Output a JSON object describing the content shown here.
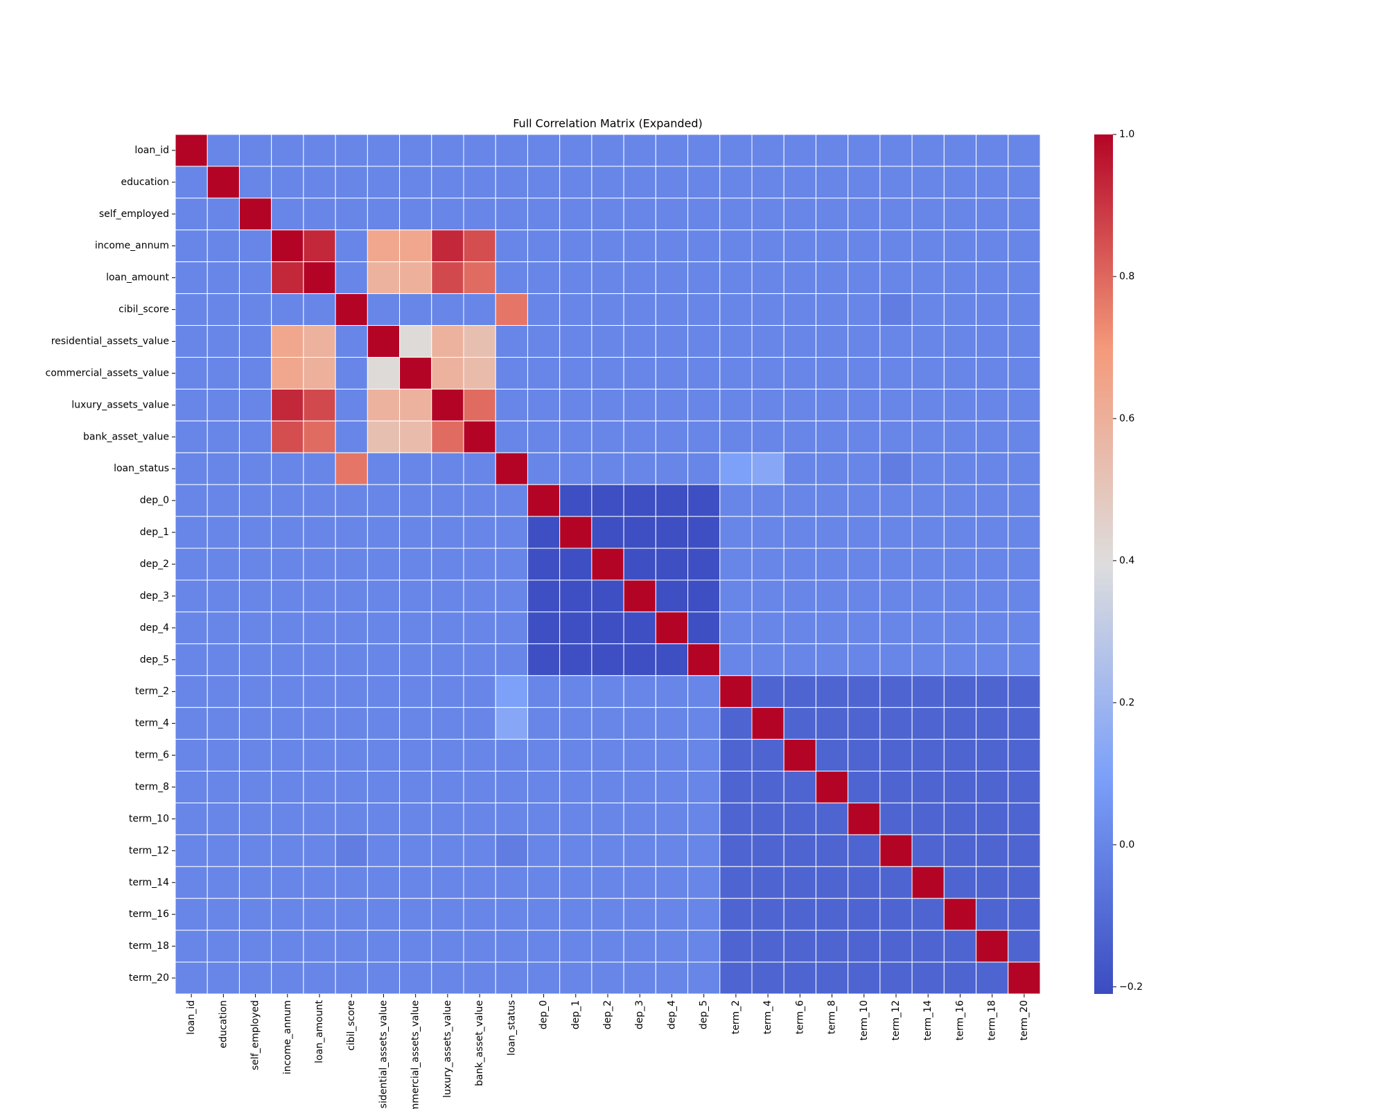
{
  "chart_data": {
    "type": "heatmap",
    "title": "Full Correlation Matrix (Expanded)",
    "categories": [
      "loan_id",
      "education",
      "self_employed",
      "income_annum",
      "loan_amount",
      "cibil_score",
      "residential_assets_value",
      "commercial_assets_value",
      "luxury_assets_value",
      "bank_asset_value",
      "loan_status",
      "dep_0",
      "dep_1",
      "dep_2",
      "dep_3",
      "dep_4",
      "dep_5",
      "term_2",
      "term_4",
      "term_6",
      "term_8",
      "term_10",
      "term_12",
      "term_14",
      "term_16",
      "term_18",
      "term_20"
    ],
    "matrix": [
      [
        1,
        0,
        0,
        0,
        0,
        0,
        0,
        0,
        0,
        0,
        0,
        0,
        0,
        0,
        0,
        0,
        0,
        0,
        0,
        0,
        0,
        0,
        0,
        0,
        0,
        0,
        0
      ],
      [
        0,
        1,
        0,
        0,
        0,
        0,
        0,
        0,
        0,
        0,
        0,
        0,
        0,
        0,
        0,
        0,
        0,
        0,
        0,
        0,
        0,
        0,
        0,
        0,
        0,
        0,
        0
      ],
      [
        0,
        0,
        1,
        0,
        0,
        0,
        0,
        0,
        0,
        0,
        0,
        0,
        0,
        0,
        0,
        0,
        0,
        0,
        0,
        0,
        0,
        0,
        0,
        0,
        0,
        0,
        0
      ],
      [
        0,
        0,
        0,
        1,
        0.93,
        0,
        0.64,
        0.64,
        0.93,
        0.85,
        0,
        0,
        0,
        0,
        0,
        0,
        0,
        0,
        0,
        0,
        0,
        0,
        0,
        0,
        0,
        0,
        0
      ],
      [
        0,
        0,
        0,
        0.93,
        1,
        0,
        0.59,
        0.6,
        0.86,
        0.79,
        0,
        0,
        0,
        0,
        0,
        0,
        0,
        0,
        0,
        0,
        0,
        0,
        0,
        0,
        0,
        0,
        0
      ],
      [
        0,
        0,
        0,
        0,
        0,
        1,
        0,
        0,
        0,
        0,
        0.77,
        0,
        0,
        0,
        0,
        0,
        0,
        0,
        0,
        0,
        0,
        0,
        -0.03,
        0,
        0,
        0,
        0
      ],
      [
        0,
        0,
        0,
        0.64,
        0.59,
        0,
        1,
        0.41,
        0.59,
        0.53,
        0,
        0,
        0,
        0,
        0,
        0,
        0,
        0,
        0,
        0,
        0,
        0,
        0,
        0,
        0,
        0,
        0
      ],
      [
        0,
        0,
        0,
        0.64,
        0.6,
        0,
        0.41,
        1,
        0.59,
        0.55,
        0,
        0,
        0,
        0,
        0,
        0,
        0,
        0,
        0,
        0,
        0,
        0,
        0,
        0,
        0,
        0,
        0
      ],
      [
        0,
        0,
        0,
        0.93,
        0.86,
        0,
        0.59,
        0.59,
        1,
        0.79,
        0,
        0,
        0,
        0,
        0,
        0,
        0,
        0,
        0,
        0,
        0,
        0,
        0,
        0,
        0,
        0,
        0
      ],
      [
        0,
        0,
        0,
        0.85,
        0.79,
        0,
        0.53,
        0.55,
        0.79,
        1,
        0,
        0,
        0,
        0,
        0,
        0,
        0,
        0,
        0,
        0,
        0,
        0,
        0,
        0,
        0,
        0,
        0
      ],
      [
        0,
        0,
        0,
        0,
        0,
        0.77,
        0,
        0,
        0,
        0,
        1,
        0,
        0,
        0,
        0,
        0,
        0,
        0.1,
        0.13,
        0,
        0,
        0,
        -0.03,
        0,
        0,
        0,
        0
      ],
      [
        0,
        0,
        0,
        0,
        0,
        0,
        0,
        0,
        0,
        0,
        0,
        1,
        -0.2,
        -0.2,
        -0.2,
        -0.2,
        -0.2,
        0,
        0,
        0,
        0,
        0,
        0,
        0,
        0,
        0,
        0
      ],
      [
        0,
        0,
        0,
        0,
        0,
        0,
        0,
        0,
        0,
        0,
        0,
        -0.2,
        1,
        -0.2,
        -0.2,
        -0.2,
        -0.2,
        0,
        0,
        0,
        0,
        0,
        0,
        0,
        0,
        0,
        0
      ],
      [
        0,
        0,
        0,
        0,
        0,
        0,
        0,
        0,
        0,
        0,
        0,
        -0.2,
        -0.2,
        1,
        -0.2,
        -0.2,
        -0.2,
        0,
        0,
        0,
        0,
        0,
        0,
        0,
        0,
        0,
        0
      ],
      [
        0,
        0,
        0,
        0,
        0,
        0,
        0,
        0,
        0,
        0,
        0,
        -0.2,
        -0.2,
        -0.2,
        1,
        -0.2,
        -0.2,
        0,
        0,
        0,
        0,
        0,
        0,
        0,
        0,
        0,
        0
      ],
      [
        0,
        0,
        0,
        0,
        0,
        0,
        0,
        0,
        0,
        0,
        0,
        -0.2,
        -0.2,
        -0.2,
        -0.2,
        1,
        -0.2,
        0,
        0,
        0,
        0,
        0,
        0,
        0,
        0,
        0,
        0
      ],
      [
        0,
        0,
        0,
        0,
        0,
        0,
        0,
        0,
        0,
        0,
        0,
        -0.2,
        -0.2,
        -0.2,
        -0.2,
        -0.2,
        1,
        0,
        0,
        0,
        0,
        0,
        0,
        0,
        0,
        0,
        0
      ],
      [
        0,
        0,
        0,
        0,
        0,
        0,
        0,
        0,
        0,
        0,
        0.1,
        0,
        0,
        0,
        0,
        0,
        0,
        1,
        -0.12,
        -0.12,
        -0.12,
        -0.12,
        -0.12,
        -0.12,
        -0.12,
        -0.12,
        -0.12
      ],
      [
        0,
        0,
        0,
        0,
        0,
        0,
        0,
        0,
        0,
        0,
        0.13,
        0,
        0,
        0,
        0,
        0,
        0,
        -0.12,
        1,
        -0.12,
        -0.12,
        -0.12,
        -0.12,
        -0.12,
        -0.12,
        -0.12,
        -0.12
      ],
      [
        0,
        0,
        0,
        0,
        0,
        0,
        0,
        0,
        0,
        0,
        0,
        0,
        0,
        0,
        0,
        0,
        0,
        -0.12,
        -0.12,
        1,
        -0.12,
        -0.12,
        -0.12,
        -0.12,
        -0.12,
        -0.12,
        -0.12
      ],
      [
        0,
        0,
        0,
        0,
        0,
        0,
        0,
        0,
        0,
        0,
        0,
        0,
        0,
        0,
        0,
        0,
        0,
        -0.12,
        -0.12,
        -0.12,
        1,
        -0.12,
        -0.12,
        -0.12,
        -0.12,
        -0.12,
        -0.12
      ],
      [
        0,
        0,
        0,
        0,
        0,
        0,
        0,
        0,
        0,
        0,
        0,
        0,
        0,
        0,
        0,
        0,
        0,
        -0.12,
        -0.12,
        -0.12,
        -0.12,
        1,
        -0.12,
        -0.12,
        -0.12,
        -0.12,
        -0.12
      ],
      [
        0,
        0,
        0,
        0,
        0,
        -0.03,
        0,
        0,
        0,
        0,
        -0.03,
        0,
        0,
        0,
        0,
        0,
        0,
        -0.12,
        -0.12,
        -0.12,
        -0.12,
        -0.12,
        1,
        -0.12,
        -0.12,
        -0.12,
        -0.12
      ],
      [
        0,
        0,
        0,
        0,
        0,
        0,
        0,
        0,
        0,
        0,
        0,
        0,
        0,
        0,
        0,
        0,
        0,
        -0.12,
        -0.12,
        -0.12,
        -0.12,
        -0.12,
        -0.12,
        1,
        -0.12,
        -0.12,
        -0.12
      ],
      [
        0,
        0,
        0,
        0,
        0,
        0,
        0,
        0,
        0,
        0,
        0,
        0,
        0,
        0,
        0,
        0,
        0,
        -0.12,
        -0.12,
        -0.12,
        -0.12,
        -0.12,
        -0.12,
        -0.12,
        1,
        -0.12,
        -0.12
      ],
      [
        0,
        0,
        0,
        0,
        0,
        0,
        0,
        0,
        0,
        0,
        0,
        0,
        0,
        0,
        0,
        0,
        0,
        -0.12,
        -0.12,
        -0.12,
        -0.12,
        -0.12,
        -0.12,
        -0.12,
        -0.12,
        1,
        -0.12
      ],
      [
        0,
        0,
        0,
        0,
        0,
        0,
        0,
        0,
        0,
        0,
        0,
        0,
        0,
        0,
        0,
        0,
        0,
        -0.12,
        -0.12,
        -0.12,
        -0.12,
        -0.12,
        -0.12,
        -0.12,
        -0.12,
        -0.12,
        1
      ]
    ],
    "colormap": [
      "#3b4cc0",
      "#7b9ff9",
      "#dddddd",
      "#f49a7b",
      "#b40426"
    ],
    "clim": [
      -0.21,
      1
    ],
    "cticks": [
      {
        "value": -0.2,
        "label": "−0.2"
      },
      {
        "value": 0,
        "label": "0.0"
      },
      {
        "value": 0.2,
        "label": "0.2"
      },
      {
        "value": 0.4,
        "label": "0.4"
      },
      {
        "value": 0.6,
        "label": "0.6"
      },
      {
        "value": 0.8,
        "label": "0.8"
      },
      {
        "value": 1,
        "label": "1.0"
      }
    ]
  }
}
